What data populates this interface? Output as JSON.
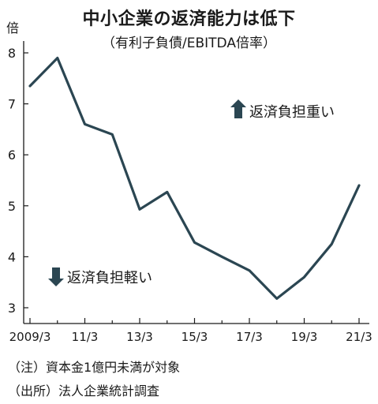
{
  "chart_data": {
    "type": "line",
    "title": "中小企業の返済能力は低下",
    "subtitle": "（有利子負債/EBITDA倍率）",
    "ylabel": "倍",
    "ylim": [
      2.7,
      8.6
    ],
    "yticks": [
      3,
      4,
      5,
      6,
      7,
      8
    ],
    "x": [
      2009,
      2010,
      2011,
      2012,
      2013,
      2014,
      2015,
      2016,
      2017,
      2018,
      2019,
      2020,
      2021
    ],
    "x_tick_labels": [
      "2009/3",
      "11/3",
      "13/3",
      "15/3",
      "17/3",
      "19/3",
      "21/3"
    ],
    "series": [
      {
        "values": [
          7.35,
          7.9,
          6.6,
          6.4,
          4.93,
          5.27,
          4.28,
          4.0,
          3.73,
          3.18,
          3.6,
          4.25,
          5.4
        ]
      }
    ],
    "line_color": "#2b4652",
    "annotations": [
      {
        "text": "返済負担重い",
        "icon": "up-arrow-icon"
      },
      {
        "text": "返済負担軽い",
        "icon": "down-arrow-icon"
      }
    ],
    "grid": false
  },
  "notes": {
    "note": "（注）資本金1億円未満が対象",
    "source": "（出所）法人企業統計調査"
  }
}
